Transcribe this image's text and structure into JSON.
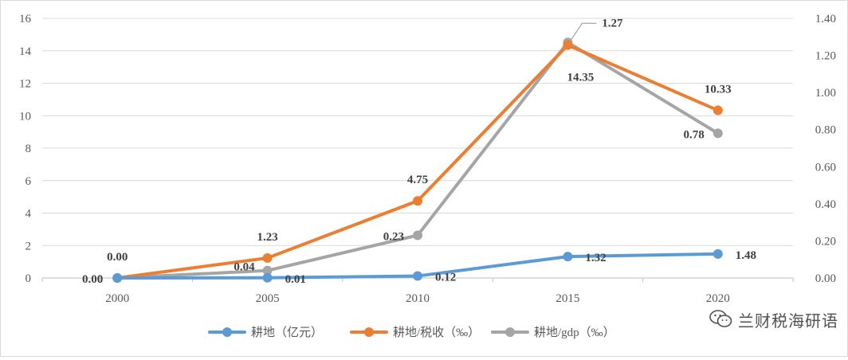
{
  "chart_data": {
    "type": "line",
    "categories": [
      "2000",
      "2005",
      "2010",
      "2015",
      "2020"
    ],
    "y_left": {
      "ylim": [
        0,
        16
      ],
      "ticks": [
        "0",
        "2",
        "4",
        "6",
        "8",
        "10",
        "12",
        "14",
        "16"
      ]
    },
    "y_right": {
      "ylim": [
        0,
        1.4
      ],
      "ticks": [
        "0.00",
        "0.20",
        "0.40",
        "0.60",
        "0.80",
        "1.00",
        "1.20",
        "1.40"
      ]
    },
    "grid": true,
    "legend_position": "bottom",
    "series": [
      {
        "name": "耕地（亿元）",
        "axis": "left",
        "color": "#5b9bd5",
        "values": [
          0,
          0.01,
          0.12,
          1.32,
          1.48
        ],
        "labels": [
          "0",
          "0.01",
          "0.12",
          "1.32",
          "1.48"
        ]
      },
      {
        "name": "耕地/税收（‰）",
        "axis": "left",
        "color": "#ed7d31",
        "values": [
          0.0,
          1.23,
          4.75,
          14.35,
          10.33
        ],
        "labels": [
          "0.00",
          "1.23",
          "4.75",
          "14.35",
          "10.33"
        ]
      },
      {
        "name": "耕地/gdp（‰）",
        "axis": "right",
        "color": "#a5a5a5",
        "values": [
          0.0,
          0.04,
          0.23,
          1.27,
          0.78
        ],
        "labels": [
          "0.00",
          "0.04",
          "0.23",
          "1.27",
          "0.78"
        ]
      }
    ]
  },
  "watermark": {
    "text": "兰财税海研语",
    "icon": "wechat-icon"
  }
}
